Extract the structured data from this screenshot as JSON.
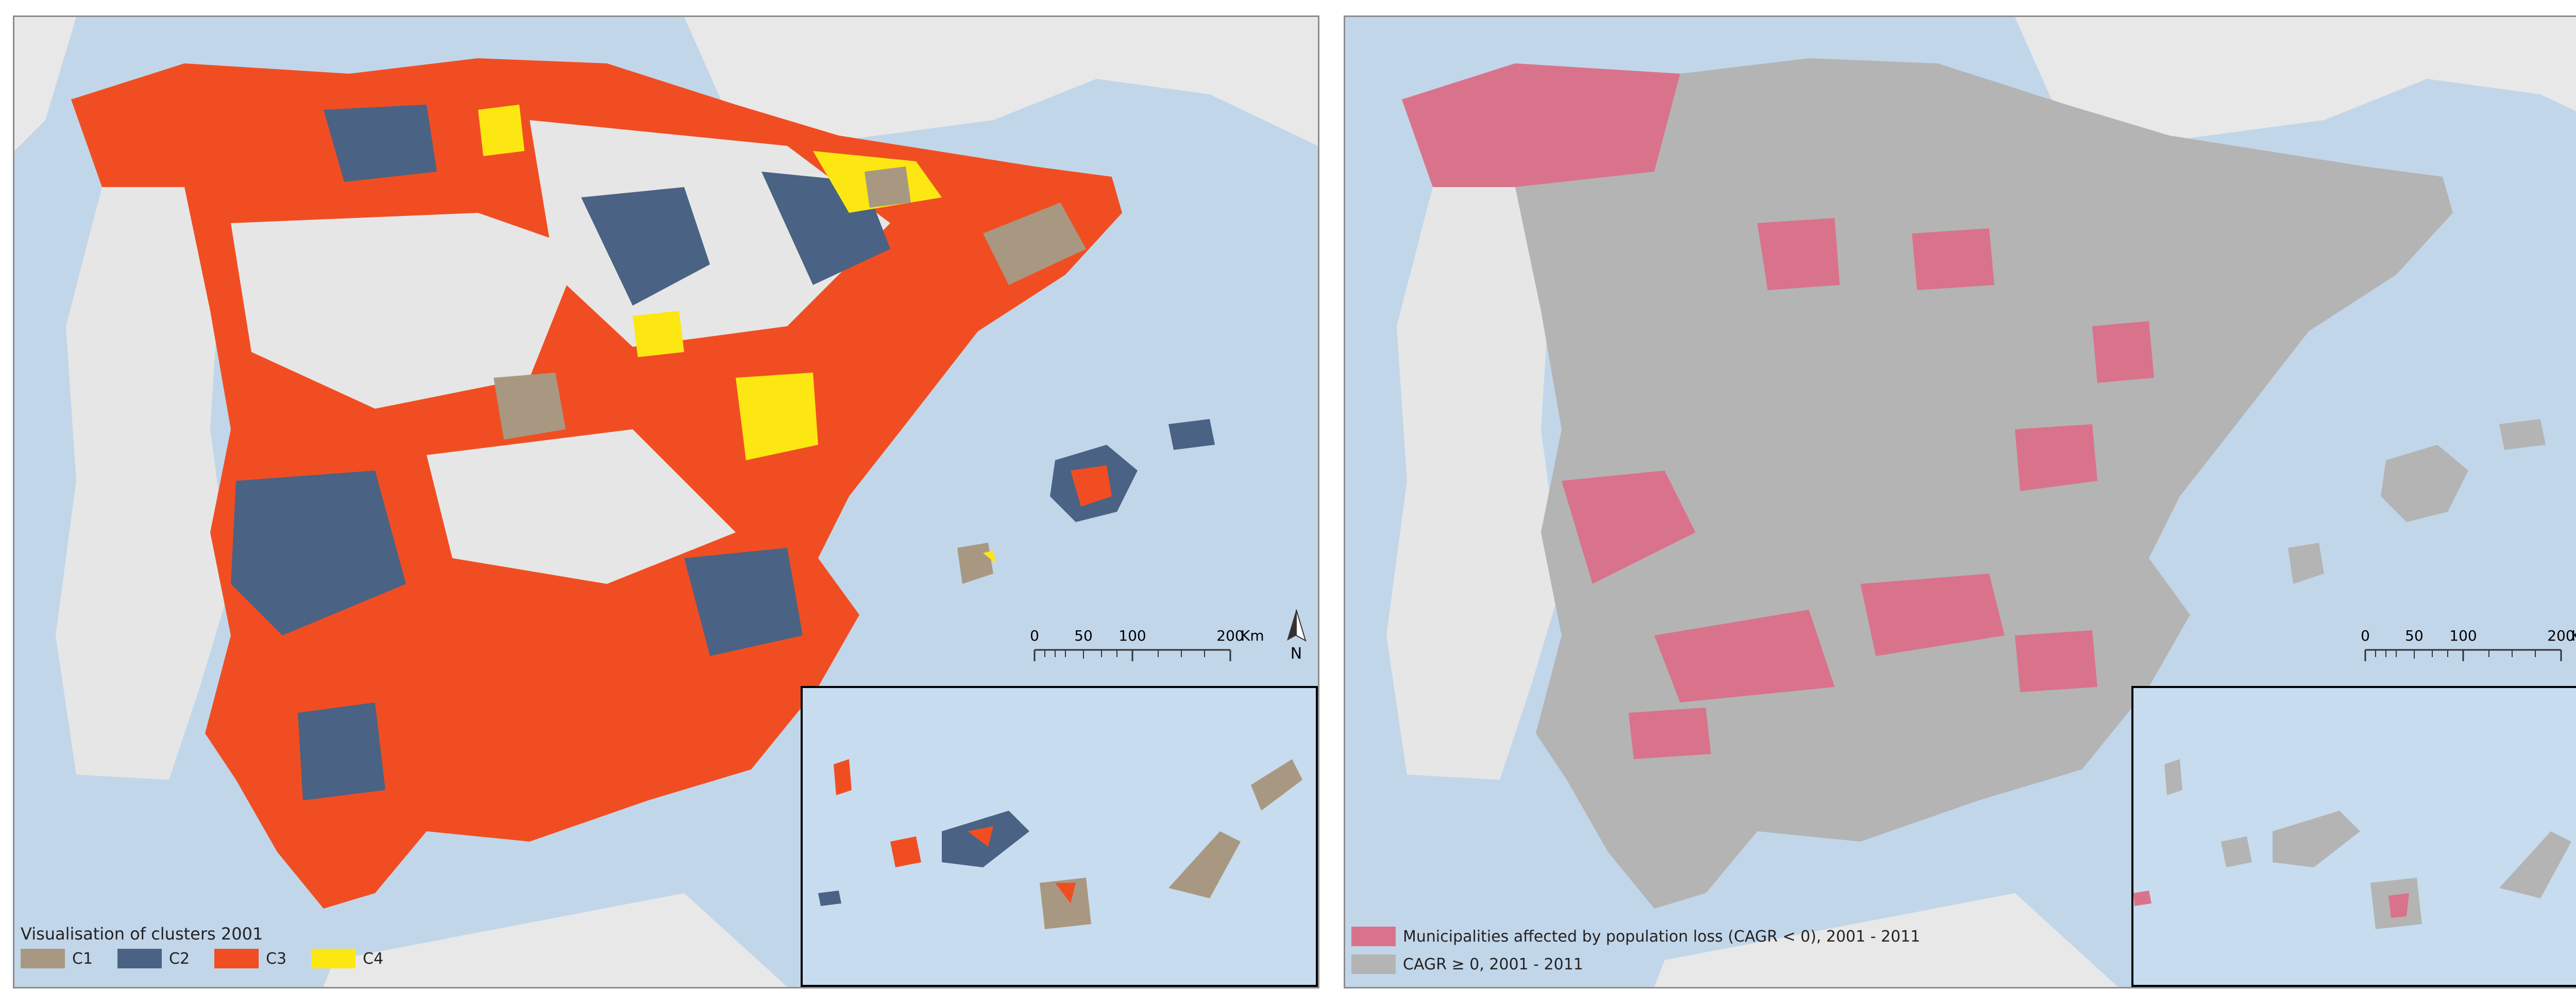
{
  "colors": {
    "sea": "#c2d6ea",
    "land_outside": "#e8e8e8",
    "c1": "#a89882",
    "c2": "#4a6283",
    "c3": "#f04e22",
    "c4": "#fde712",
    "loss": "#d9738c",
    "gain": "#b4b4b4"
  },
  "left_panel": {
    "legend": {
      "title": "Visualisation of clusters 2001",
      "items": [
        {
          "label": "C1",
          "color": "#a89882"
        },
        {
          "label": "C2",
          "color": "#4a6283"
        },
        {
          "label": "C3",
          "color": "#f04e22"
        },
        {
          "label": "C4",
          "color": "#fde712"
        }
      ]
    }
  },
  "right_panel": {
    "legend": {
      "items": [
        {
          "label": "Municipalities affected by population loss (CAGR < 0), 2001 - 2011",
          "color": "#d9738c"
        },
        {
          "label": "CAGR ≥ 0, 2001 - 2011",
          "color": "#b4b4b4"
        }
      ]
    }
  },
  "scale_bar": {
    "ticks": [
      "0",
      "50",
      "100",
      "200"
    ],
    "unit": "Km"
  },
  "north_arrow": {
    "label": "N"
  }
}
